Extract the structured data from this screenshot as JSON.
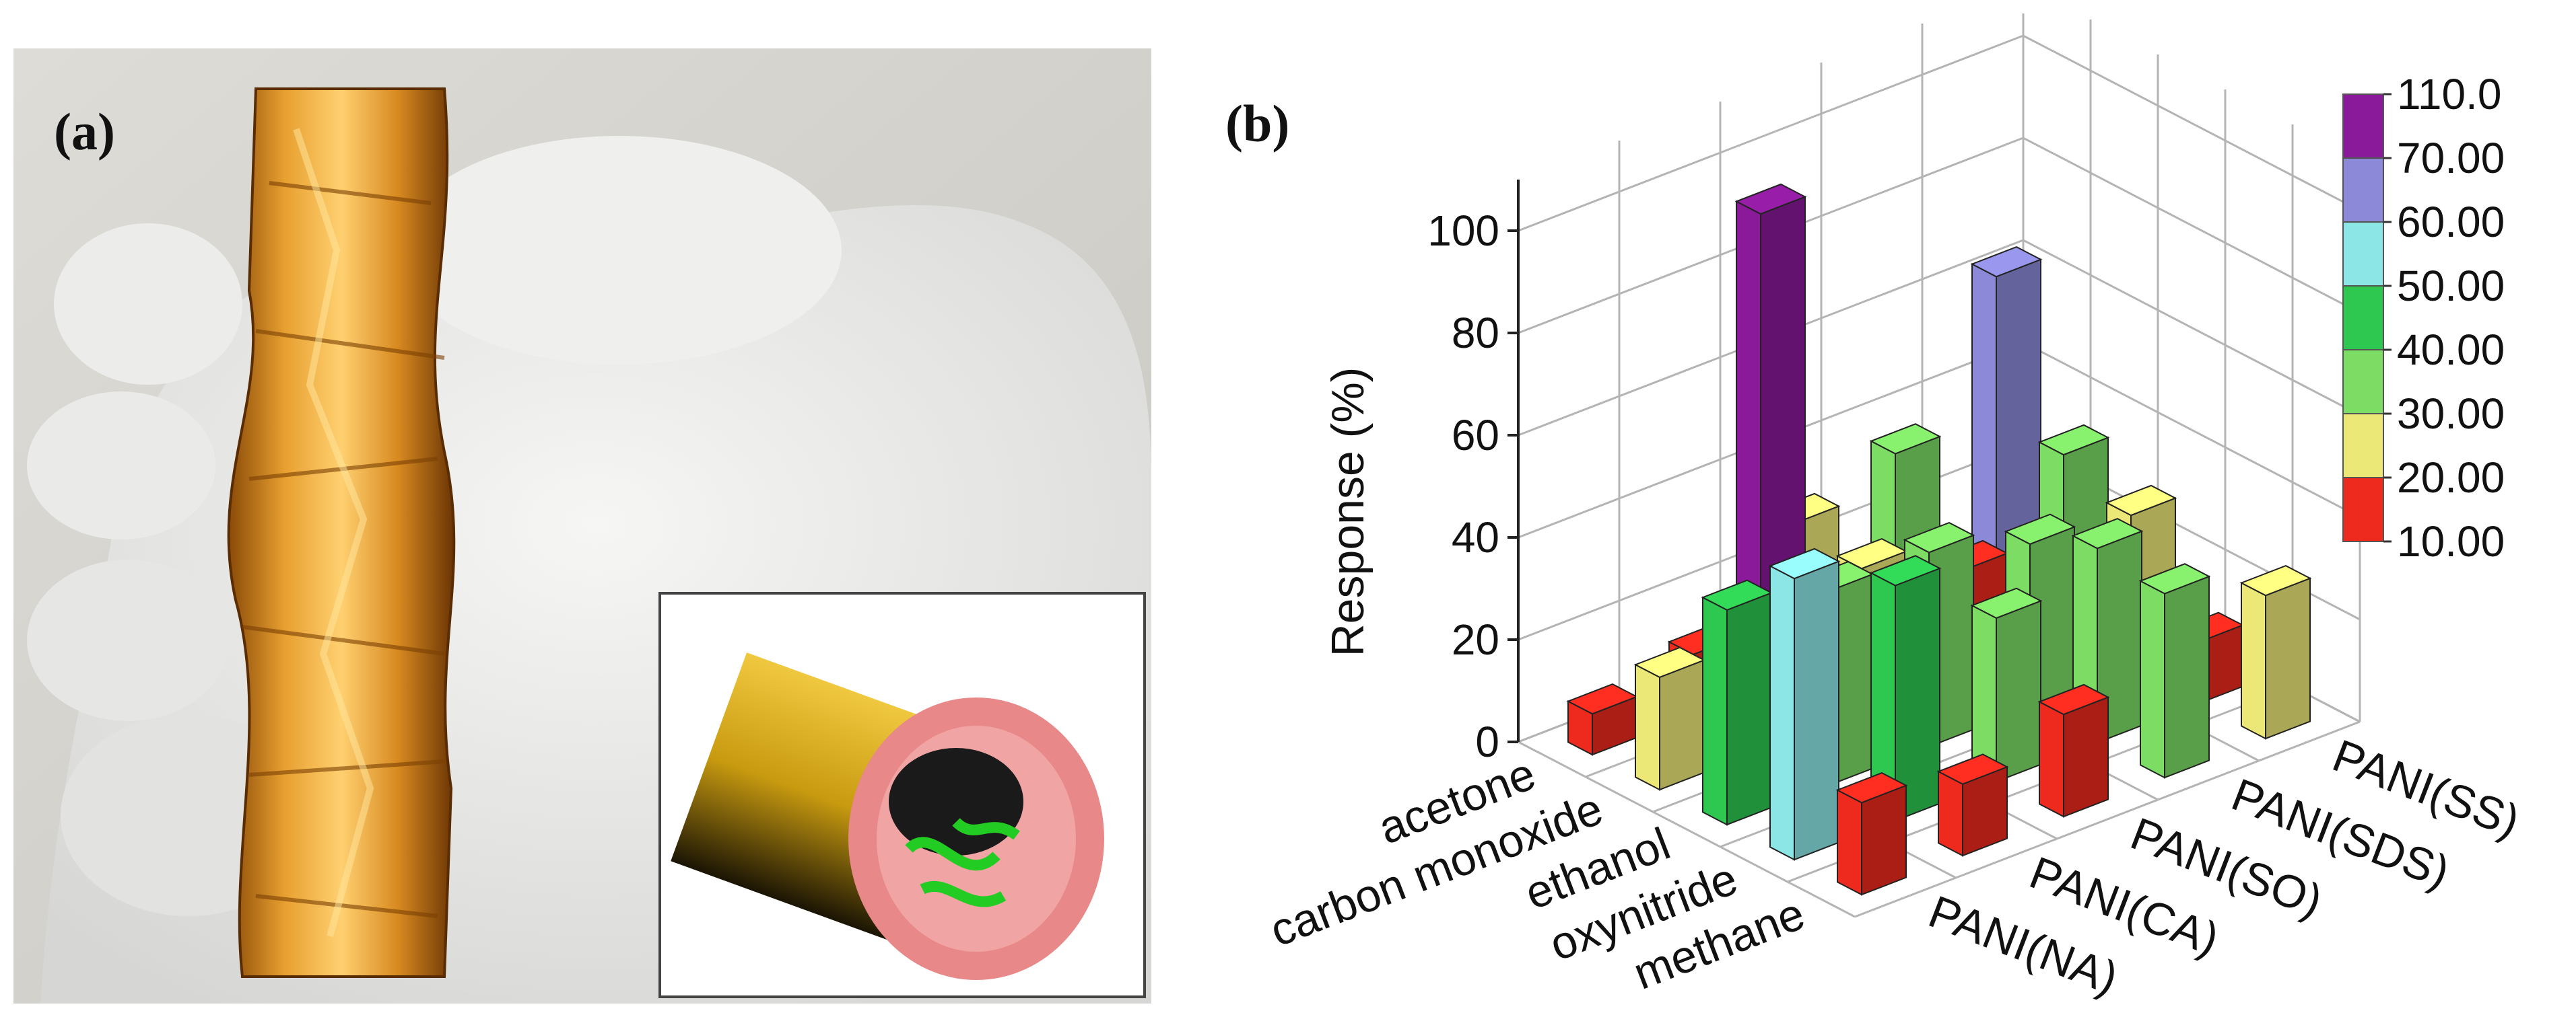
{
  "panel_a": {
    "label": "(a)"
  },
  "chart_data": {
    "type": "bar",
    "panel_label": "(b)",
    "title": "",
    "ylabel": "Response (%)",
    "xlabel": "",
    "zlim": [
      0,
      110
    ],
    "z_ticks": [
      "0",
      "20",
      "40",
      "60",
      "80",
      "100"
    ],
    "gases": [
      "acetone",
      "carbon monoxide",
      "ethanol",
      "oxynitride",
      "methane"
    ],
    "sensors": [
      "PANI(NA)",
      "PANI(CA)",
      "PANI(SO)",
      "PANI(SDS)",
      "PANI(SS)"
    ],
    "series": [
      {
        "name": "PANI(NA)",
        "values": [
          8,
          22,
          42,
          55,
          18
        ]
      },
      {
        "name": "PANI(CA)",
        "values": [
          12,
          105,
          38,
          46,
          14
        ]
      },
      {
        "name": "PANI(SO)",
        "values": [
          30,
          28,
          38,
          32,
          20
        ]
      },
      {
        "name": "PANI(SDS)",
        "values": [
          36,
          20,
          32,
          38,
          36
        ]
      },
      {
        "name": "PANI(SS)",
        "values": [
          63,
          35,
          30,
          12,
          28
        ]
      }
    ],
    "color_scale": {
      "labels": [
        "110.0",
        "70.00",
        "60.00",
        "50.00",
        "40.00",
        "30.00",
        "20.00",
        "10.00"
      ],
      "colors": [
        "#8a1a9a",
        "#8c8ad8",
        "#8ce6e6",
        "#2ec850",
        "#7cdc64",
        "#ece878",
        "#ee2a1e"
      ]
    },
    "grid": true,
    "legend_position": "right"
  }
}
